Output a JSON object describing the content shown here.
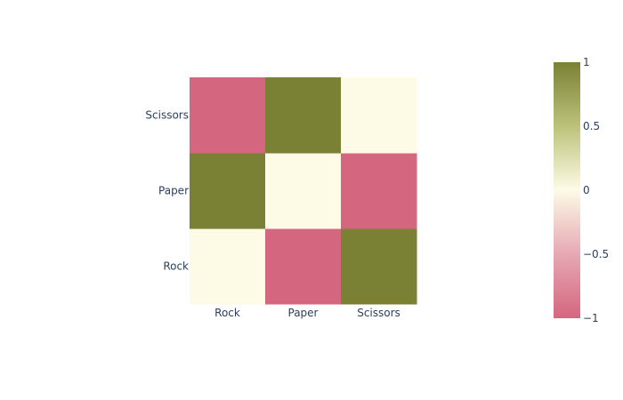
{
  "chart_data": {
    "type": "heatmap",
    "title": "",
    "xlabel": "",
    "ylabel": "",
    "x": [
      "Rock",
      "Paper",
      "Scissors"
    ],
    "y": [
      "Rock",
      "Paper",
      "Scissors"
    ],
    "z": [
      [
        0,
        -1,
        1
      ],
      [
        1,
        0,
        -1
      ],
      [
        -1,
        1,
        0
      ]
    ],
    "zmin": -1,
    "zmax": 1,
    "colorscale": [
      [
        0,
        "#d5667f"
      ],
      [
        0.25,
        "#e6a8b3"
      ],
      [
        0.5,
        "#fdfbe6"
      ],
      [
        0.75,
        "#bcc27a"
      ],
      [
        1,
        "#7a8135"
      ]
    ],
    "colorbar": {
      "tick_values": [
        1,
        0.5,
        0,
        -0.5,
        -1
      ],
      "tick_labels": [
        "1",
        "0.5",
        "0",
        "−0.5",
        "−1"
      ]
    }
  }
}
